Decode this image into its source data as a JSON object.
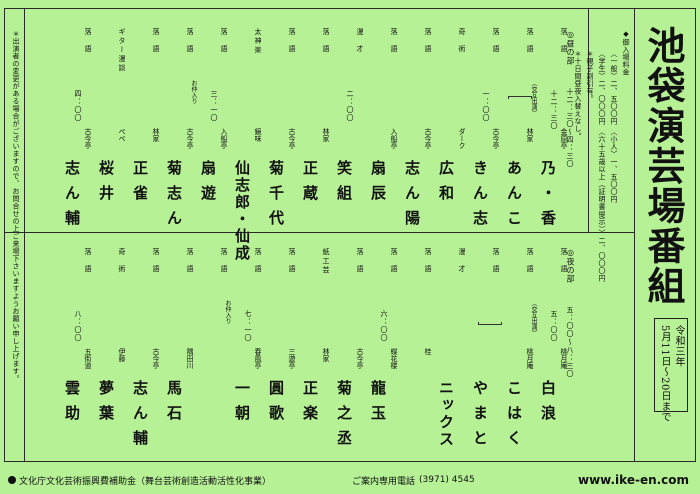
{
  "title": "池袋演芸場番組",
  "date": {
    "era": "令和三年",
    "range": "5月11日〜20日まで"
  },
  "prices": {
    "heading": "◆御入場料金",
    "line1": "〈一般〉二、五〇〇円 〈小人〉一、五〇〇円",
    "line2": "〈学生〉二、〇〇〇円 〈六十五歳以上（証明書提示）〉二、〇〇〇円",
    "line3": "＊親子割引有。",
    "line4": "＊十日間昼夜入替えなし。"
  },
  "notice": "＊出演者の変更がある場合がございますので、お問合せの上ご来場下さいますようお願い申し上げます。",
  "day": {
    "label": "◎昼の部",
    "time": "十二：三〇〜四：三〇",
    "entries": [
      {
        "role": "落語",
        "aff": "金原亭",
        "name": "乃・香",
        "time": "十二：三〇"
      },
      {
        "role": "落語",
        "aff": "林家",
        "name": "あんこ",
        "note": "（交互出演）"
      },
      {
        "role": "落語",
        "aff": "古今亭",
        "name": "きん志",
        "time": "一：〇〇"
      },
      {
        "role": "奇術",
        "aff": "ダーク",
        "name": "広和"
      },
      {
        "role": "落語",
        "aff": "古今亭",
        "name": "志ん陽"
      },
      {
        "role": "落語",
        "aff": "入船亭",
        "name": "扇辰"
      },
      {
        "role": "漫才",
        "aff": "",
        "name": "笑組",
        "time": "二：〇〇"
      },
      {
        "role": "落語",
        "aff": "林家",
        "name": "正蔵"
      },
      {
        "role": "落語",
        "aff": "古今亭",
        "name": "菊千代"
      },
      {
        "role": "太神楽",
        "aff": "鏡味",
        "name": "仙志郎・仙成"
      },
      {
        "role": "落語",
        "aff": "入船亭",
        "name": "扇遊",
        "time": "三：一〇"
      },
      {
        "role": "落語",
        "aff": "古今亭",
        "name": "菊志ん",
        "note": "お仲入り"
      },
      {
        "role": "落語",
        "aff": "林家",
        "name": "正雀"
      },
      {
        "role": "ギター漫談",
        "aff": "ぺぺ",
        "name": "桜井"
      },
      {
        "role": "落語",
        "aff": "古今亭",
        "name": "志ん輔",
        "time": "四：〇〇"
      }
    ]
  },
  "night": {
    "label": "◎夜の部",
    "time": "五：〇〇〜八：三〇",
    "entries": [
      {
        "role": "落語",
        "aff": "桃月庵",
        "name": "白浪",
        "time": "五：〇〇"
      },
      {
        "role": "落語",
        "aff": "桃月庵",
        "name": "こはく",
        "note": "（交互出演）"
      },
      {
        "role": "落語",
        "aff": "",
        "name": "やまと"
      },
      {
        "role": "漫才",
        "aff": "",
        "name": "ニックス"
      },
      {
        "role": "落語",
        "aff": "桂",
        "name": ""
      },
      {
        "role": "落語",
        "aff": "蝶花楼",
        "name": "龍玉",
        "time": "六：〇〇"
      },
      {
        "role": "落語",
        "aff": "古今亭",
        "name": "菊之丞"
      },
      {
        "role": "紙工芸",
        "aff": "林家",
        "name": "正楽"
      },
      {
        "role": "落語",
        "aff": "三遊亭",
        "name": "圓歌"
      },
      {
        "role": "落語",
        "aff": "春風亭",
        "name": "一朝",
        "time": "七：一〇"
      },
      {
        "role": "落語",
        "aff": "",
        "name": "",
        "note": "お仲入り"
      },
      {
        "role": "落語",
        "aff": "隅田川",
        "name": "馬石"
      },
      {
        "role": "落語",
        "aff": "古今亭",
        "name": "志ん輔"
      },
      {
        "role": "奇術",
        "aff": "伊藤",
        "name": "夢葉"
      },
      {
        "role": "落語",
        "aff": "五街道",
        "name": "雲助",
        "time": "八：〇〇"
      }
    ]
  },
  "footer": {
    "sponsor": "文化庁文化芸術振興費補助金（舞台芸術創造活動活性化事業）",
    "phone_label": "ご案内専用電話",
    "phone": "(3971) 4545",
    "url": "www.ike-en.com"
  }
}
